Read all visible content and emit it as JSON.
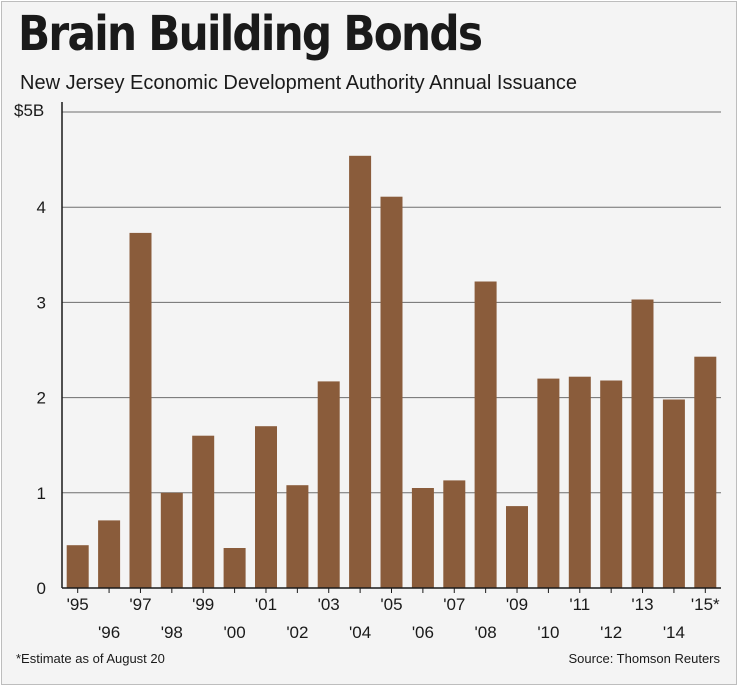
{
  "chart_data": {
    "type": "bar",
    "title": "Brain Building Bonds",
    "subtitle": "New Jersey Economic Development Authority Annual Issuance",
    "categories": [
      "'95",
      "'96",
      "'97",
      "'98",
      "'99",
      "'00",
      "'01",
      "'02",
      "'03",
      "'04",
      "'05",
      "'06",
      "'07",
      "'08",
      "'09",
      "'10",
      "'11",
      "'12",
      "'13",
      "'14",
      "'15*"
    ],
    "values": [
      0.45,
      0.71,
      3.73,
      1.0,
      1.6,
      0.42,
      1.7,
      1.08,
      2.17,
      4.54,
      4.11,
      1.05,
      1.13,
      3.22,
      0.86,
      2.2,
      2.22,
      2.18,
      3.03,
      1.98,
      2.43
    ],
    "y_ticks": [
      {
        "value": 0,
        "label": "0"
      },
      {
        "value": 1,
        "label": "1"
      },
      {
        "value": 2,
        "label": "2"
      },
      {
        "value": 3,
        "label": "3"
      },
      {
        "value": 4,
        "label": "4"
      },
      {
        "value": 5,
        "label": "$5B"
      }
    ],
    "ylim": [
      0,
      5
    ],
    "xlabel": "",
    "ylabel": "",
    "grid": true,
    "bar_color": "#8a5c3b",
    "footnote": "*Estimate as of August 20",
    "source": "Source: Thomson Reuters"
  }
}
